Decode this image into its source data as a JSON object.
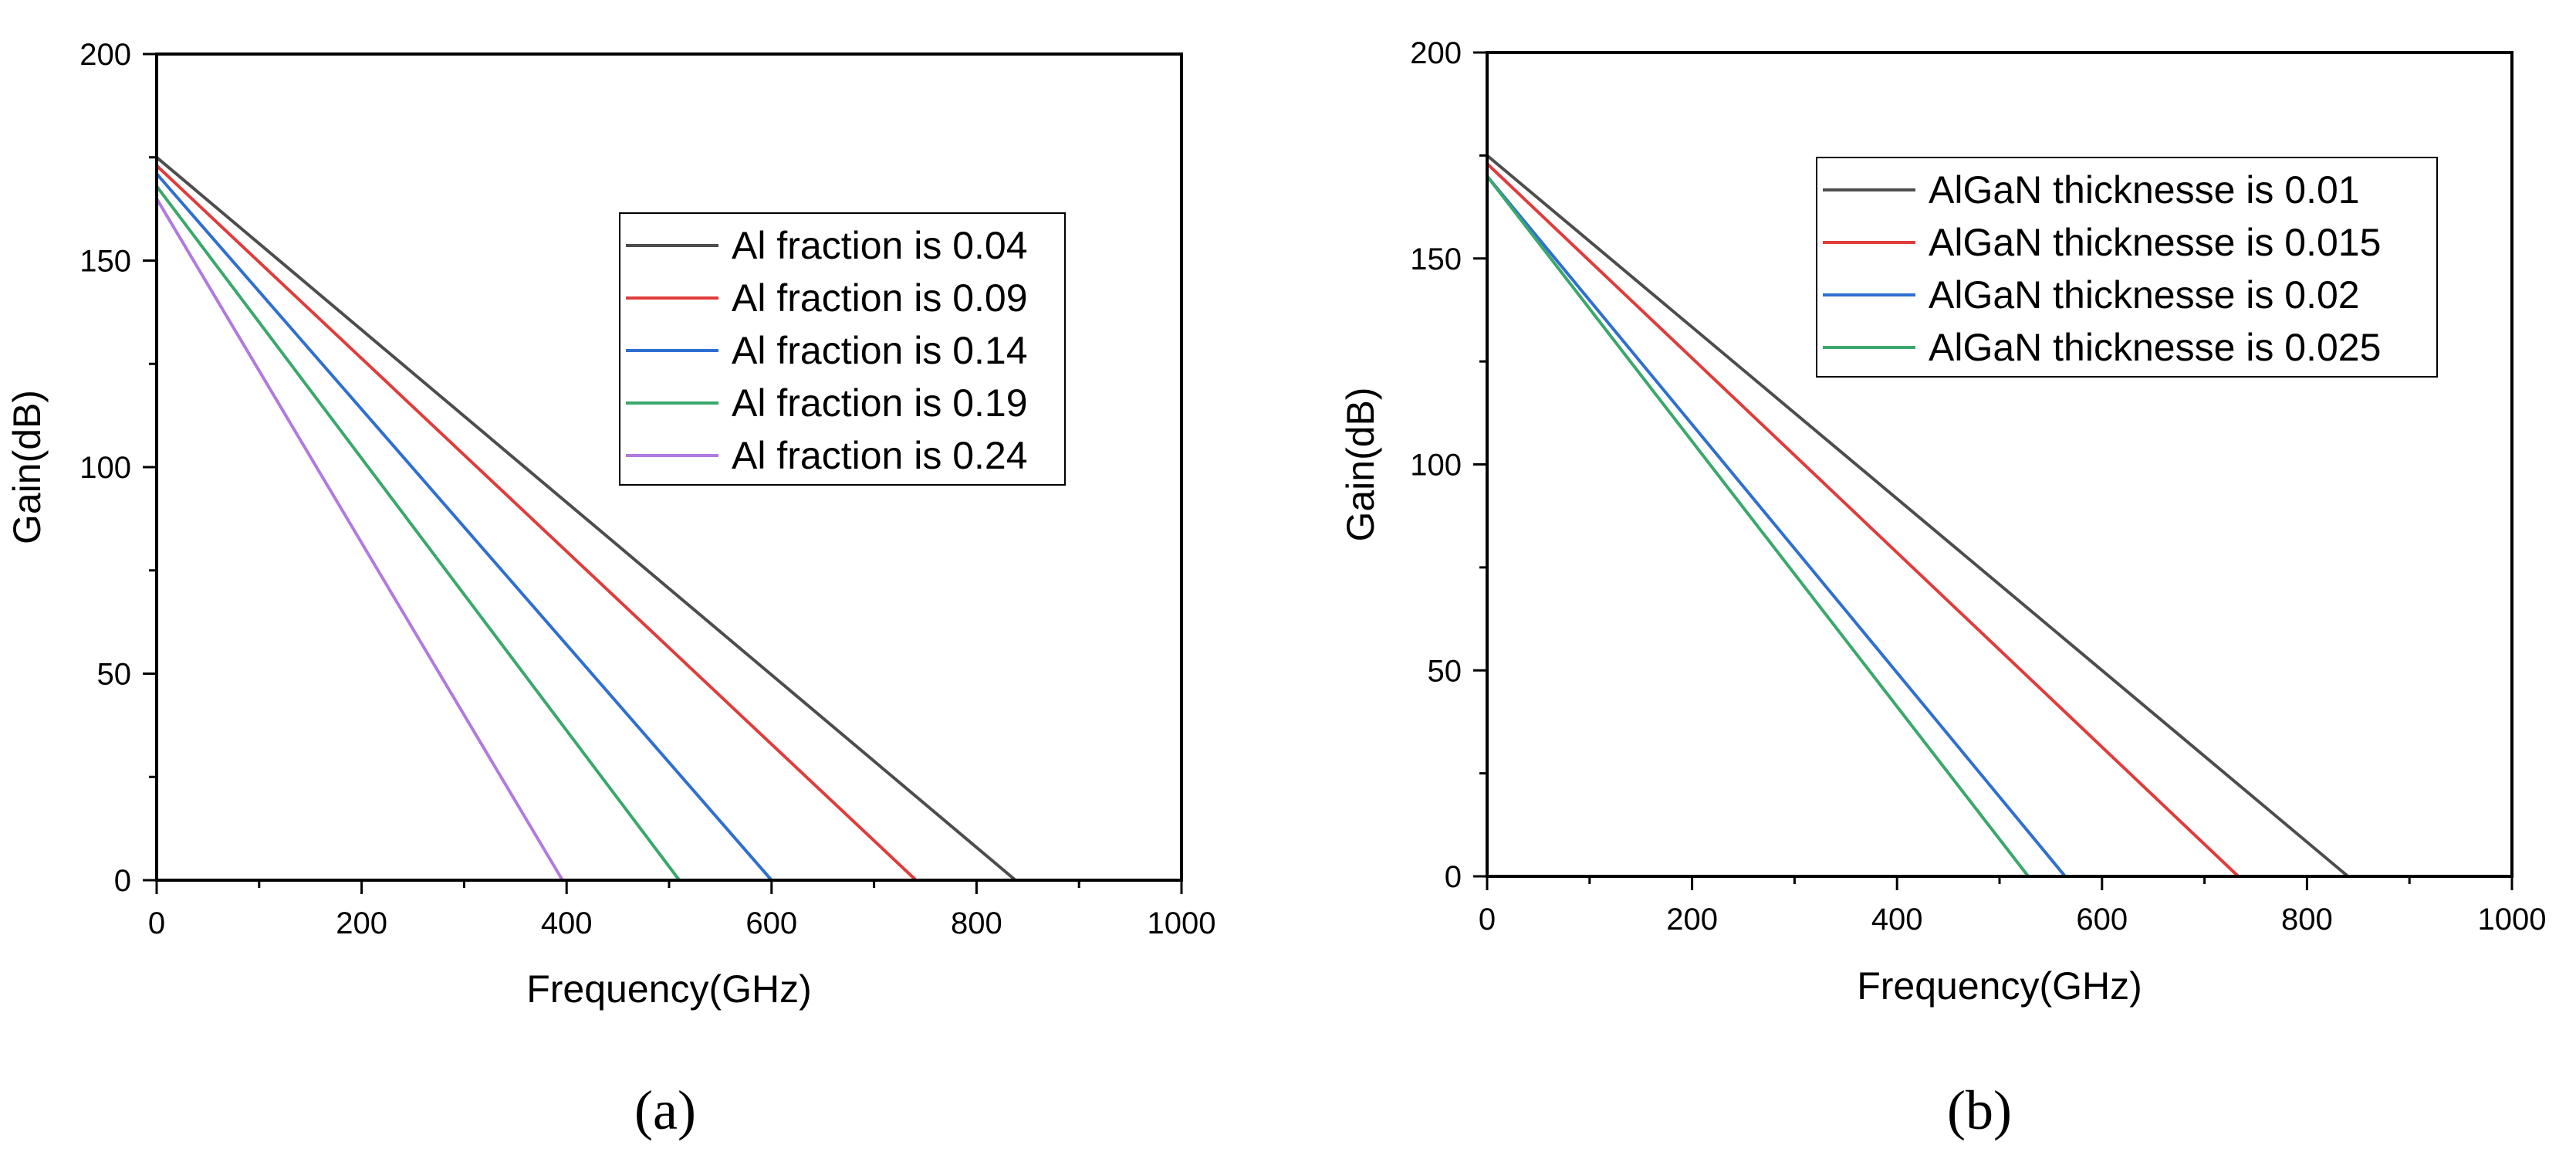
{
  "chart_data": [
    {
      "type": "line",
      "caption": "(a)",
      "xlabel": "Frequency(GHz)",
      "ylabel": "Gain(dB)",
      "xlim": [
        0,
        1000
      ],
      "ylim": [
        0,
        200
      ],
      "xticks": [
        0,
        200,
        400,
        600,
        800,
        1000
      ],
      "yticks": [
        0,
        50,
        100,
        150,
        200
      ],
      "xtick_labels": [
        "0",
        "200",
        "400",
        "600",
        "800",
        "1000"
      ],
      "ytick_labels": [
        "0",
        "50",
        "100",
        "150",
        "200"
      ],
      "legend_position": "upper-right",
      "series": [
        {
          "name": "Al fraction is 0.04",
          "color": "#4d4d4d",
          "x": [
            0,
            838
          ],
          "y": [
            175,
            0
          ]
        },
        {
          "name": "Al fraction is 0.09",
          "color": "#e03c3c",
          "x": [
            0,
            741
          ],
          "y": [
            173,
            0
          ]
        },
        {
          "name": "Al fraction is 0.14",
          "color": "#2f6fd1",
          "x": [
            0,
            600
          ],
          "y": [
            171,
            0
          ]
        },
        {
          "name": "Al fraction is 0.19",
          "color": "#3aa86b",
          "x": [
            0,
            510
          ],
          "y": [
            168,
            0
          ]
        },
        {
          "name": "Al fraction is 0.24",
          "color": "#b07ae0",
          "x": [
            0,
            396
          ],
          "y": [
            165,
            0
          ]
        }
      ]
    },
    {
      "type": "line",
      "caption": "(b)",
      "xlabel": "Frequency(GHz)",
      "ylabel": "Gain(dB)",
      "xlim": [
        0,
        1000
      ],
      "ylim": [
        0,
        200
      ],
      "xticks": [
        0,
        200,
        400,
        600,
        800,
        1000
      ],
      "yticks": [
        0,
        50,
        100,
        150,
        200
      ],
      "xtick_labels": [
        "0",
        "200",
        "400",
        "600",
        "800",
        "1000"
      ],
      "ytick_labels": [
        "0",
        "50",
        "100",
        "150",
        "200"
      ],
      "legend_position": "upper-right",
      "series": [
        {
          "name": "AlGaN thicknesse is 0.01",
          "color": "#4d4d4d",
          "x": [
            0,
            840
          ],
          "y": [
            175,
            0
          ]
        },
        {
          "name": "AlGaN thicknesse is 0.015",
          "color": "#e03c3c",
          "x": [
            0,
            733
          ],
          "y": [
            173,
            0
          ]
        },
        {
          "name": "AlGaN thicknesse is 0.02",
          "color": "#2f6fd1",
          "x": [
            0,
            564
          ],
          "y": [
            170,
            0
          ]
        },
        {
          "name": "AlGaN thicknesse is 0.025",
          "color": "#3aa86b",
          "x": [
            0,
            528
          ],
          "y": [
            170,
            0
          ]
        }
      ]
    }
  ]
}
